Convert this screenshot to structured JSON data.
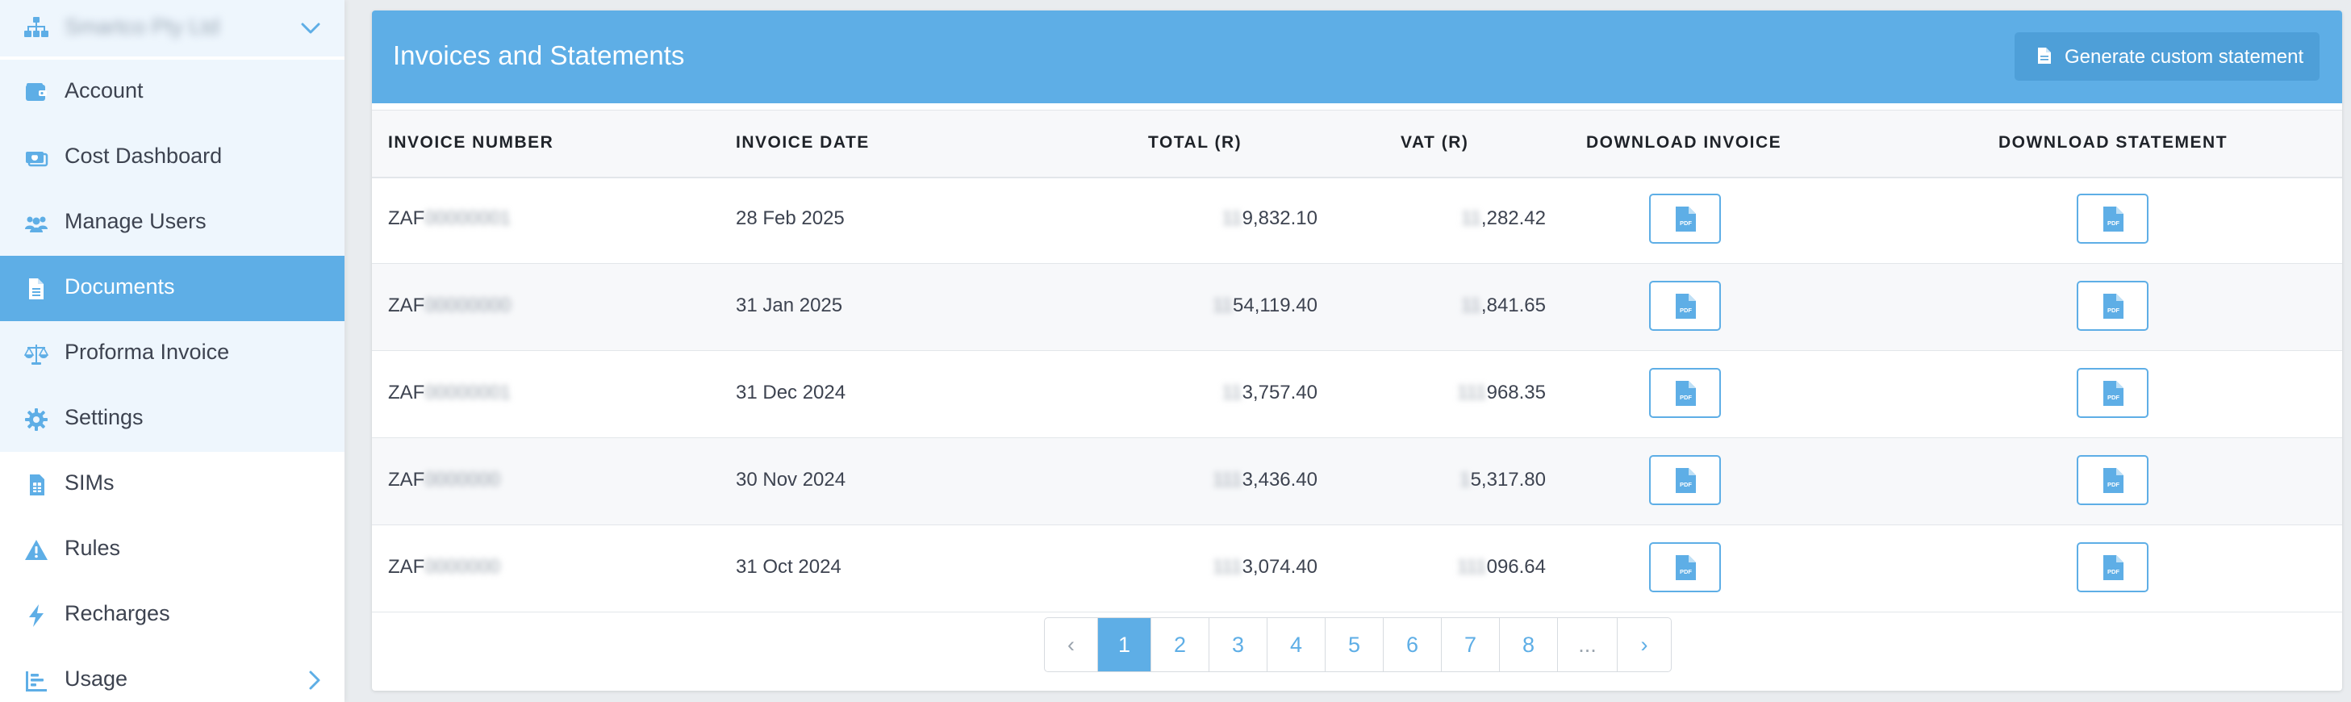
{
  "sidebar": {
    "org_name": "Smartco Pty Ltd",
    "items": [
      {
        "label": "Account",
        "icon": "wallet-icon"
      },
      {
        "label": "Cost Dashboard",
        "icon": "money-icon"
      },
      {
        "label": "Manage Users",
        "icon": "users-icon"
      },
      {
        "label": "Documents",
        "icon": "document-icon",
        "active": true
      },
      {
        "label": "Proforma Invoice",
        "icon": "scale-icon"
      },
      {
        "label": "Settings",
        "icon": "gear-icon"
      },
      {
        "label": "SIMs",
        "icon": "sim-icon"
      },
      {
        "label": "Rules",
        "icon": "warning-icon"
      },
      {
        "label": "Recharges",
        "icon": "bolt-icon"
      },
      {
        "label": "Usage",
        "icon": "chart-icon"
      }
    ]
  },
  "main": {
    "title": "Invoices and Statements",
    "generate_button": "Generate custom statement",
    "columns": [
      "INVOICE NUMBER",
      "INVOICE DATE",
      "TOTAL (R)",
      "VAT (R)",
      "DOWNLOAD INVOICE",
      "DOWNLOAD STATEMENT"
    ],
    "pdf_label": "PDF",
    "rows": [
      {
        "inv_prefix": "ZAF",
        "inv_hidden": "00000001",
        "date": "28 Feb 2025",
        "total_hidden": "11",
        "total_visible": "9,832.10",
        "vat_hidden": "11",
        "vat_visible": ",282.42"
      },
      {
        "inv_prefix": "ZAF",
        "inv_hidden": "00000000",
        "date": "31 Jan 2025",
        "total_hidden": "11",
        "total_visible": "54,119.40",
        "vat_hidden": "11",
        "vat_visible": ",841.65"
      },
      {
        "inv_prefix": "ZAF",
        "inv_hidden": "00000001",
        "date": "31 Dec 2024",
        "total_hidden": "11",
        "total_visible": "3,757.40",
        "vat_hidden": "111",
        "vat_visible": "968.35"
      },
      {
        "inv_prefix": "ZAF",
        "inv_hidden": "0000000",
        "date": "30 Nov 2024",
        "total_hidden": "111",
        "total_visible": "3,436.40",
        "vat_hidden": "1",
        "vat_visible": "5,317.80"
      },
      {
        "inv_prefix": "ZAF",
        "inv_hidden": "0000000",
        "date": "31 Oct 2024",
        "total_hidden": "111",
        "total_visible": "3,074.40",
        "vat_hidden": "111",
        "vat_visible": "096.64"
      }
    ]
  },
  "pagination": {
    "prev": "‹",
    "pages": [
      "1",
      "2",
      "3",
      "4",
      "5",
      "6",
      "7",
      "8"
    ],
    "ellipsis": "...",
    "next": "›",
    "current": "1"
  },
  "colors": {
    "accent": "#5eaee6",
    "header_button": "#4e9fd8",
    "sidebar_tint": "#eef6fd",
    "text": "#3d4350"
  }
}
